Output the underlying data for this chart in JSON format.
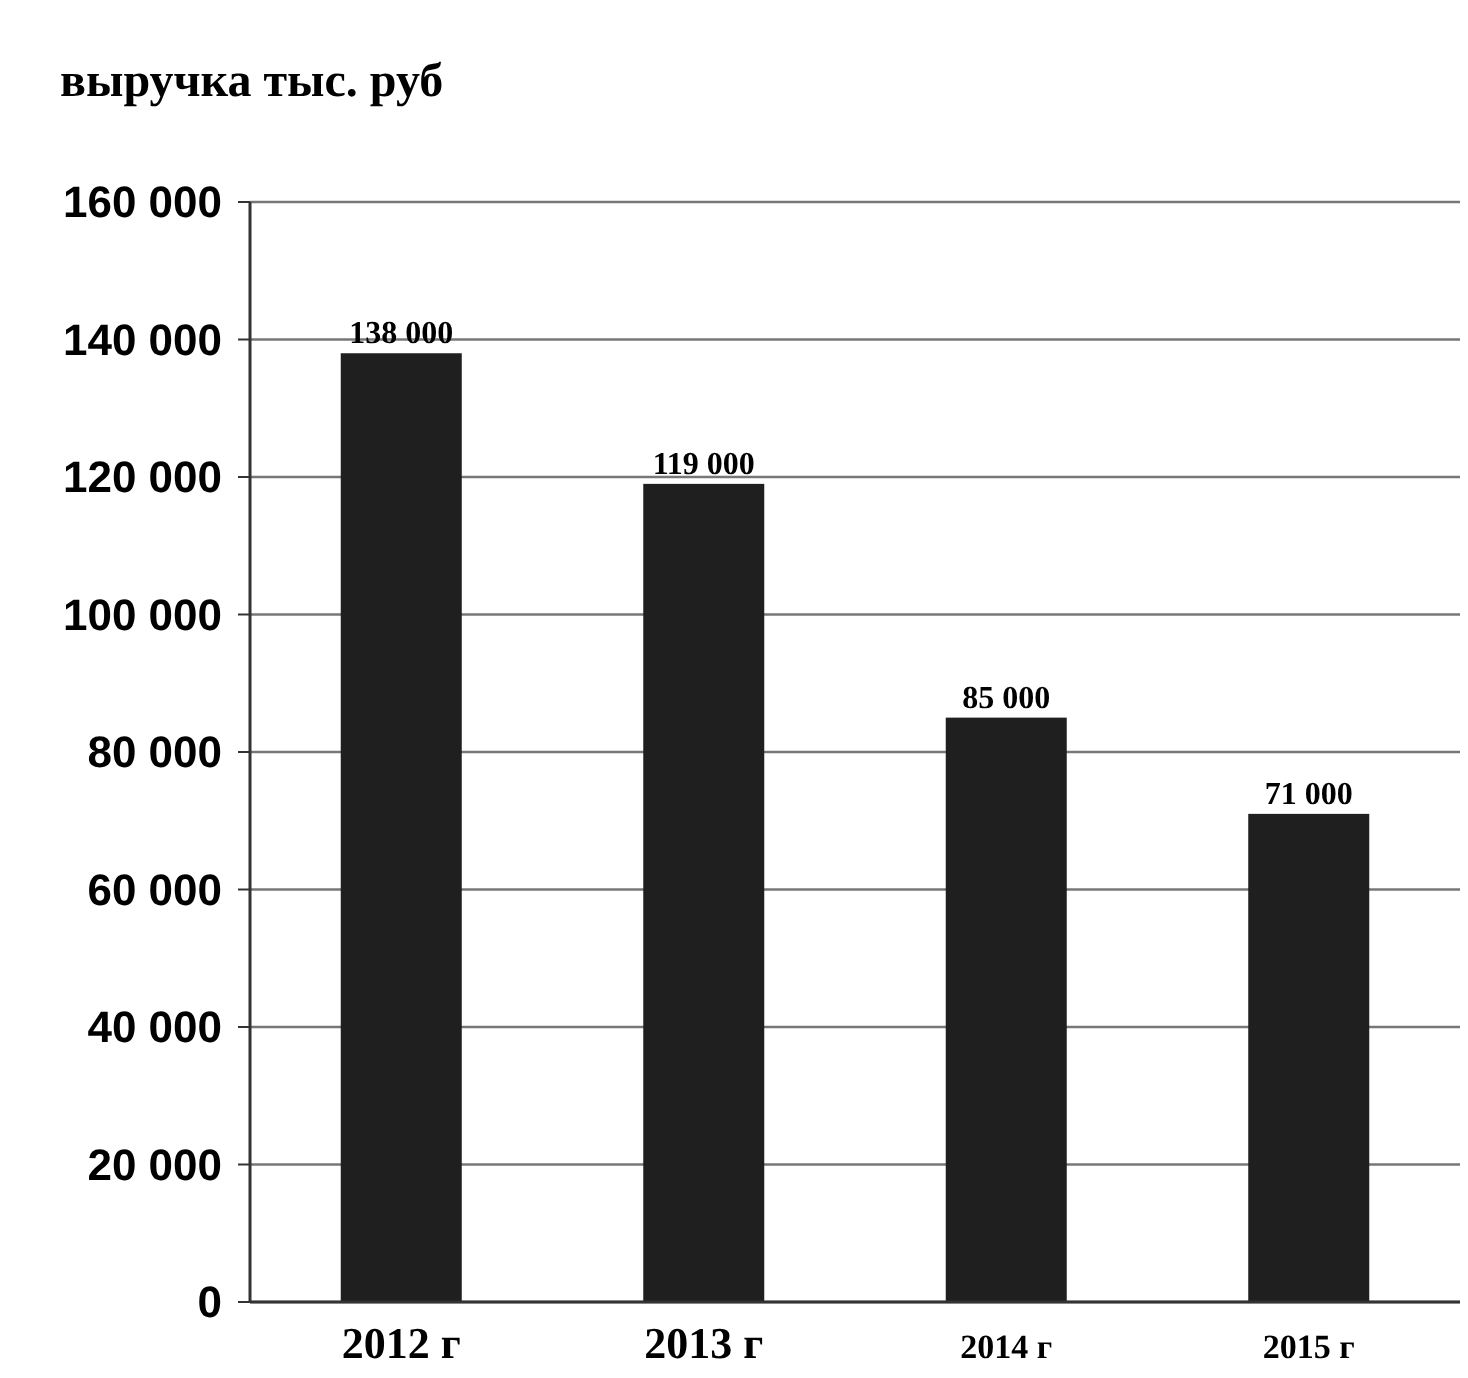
{
  "chart_data": {
    "type": "bar",
    "title": "выручка тыс. руб",
    "categories": [
      "2012 г",
      "2013 г",
      "2014 г",
      "2015 г"
    ],
    "values": [
      138000,
      119000,
      85000,
      71000
    ],
    "color": "#1f1f1f",
    "ylim": [
      0,
      160000
    ],
    "yticks": [
      {
        "value": 0,
        "label": "0"
      },
      {
        "value": 20000,
        "label": "20 000"
      },
      {
        "value": 40000,
        "label": "40 000"
      },
      {
        "value": 60000,
        "label": "60 000"
      },
      {
        "value": 80000,
        "label": "80 000"
      },
      {
        "value": 100000,
        "label": "100 000"
      },
      {
        "value": 120000,
        "label": "120 000"
      },
      {
        "value": 140000,
        "label": "140 000"
      },
      {
        "value": 160000,
        "label": "160 000"
      }
    ],
    "value_labels": [
      "138 000",
      "119 000",
      "85 000",
      "71 000"
    ],
    "grid": "y"
  }
}
